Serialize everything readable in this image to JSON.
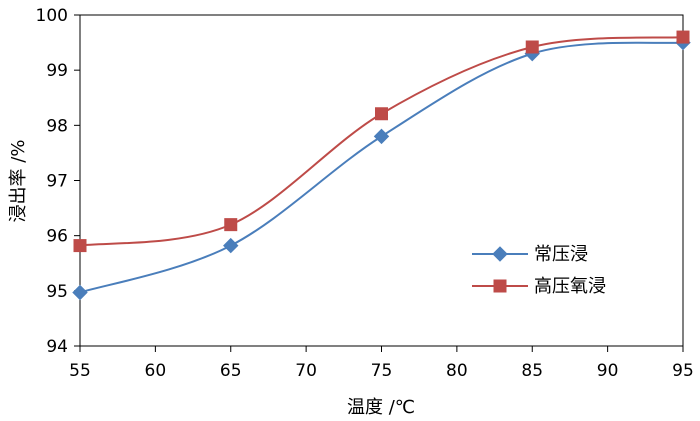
{
  "chart_data": {
    "type": "line",
    "x": [
      55,
      65,
      75,
      85,
      95
    ],
    "xlim": [
      55,
      95
    ],
    "ylim": [
      94,
      100
    ],
    "x_ticks": [
      "55",
      "60",
      "65",
      "70",
      "75",
      "80",
      "85",
      "90",
      "95"
    ],
    "y_ticks": [
      "94",
      "95",
      "96",
      "97",
      "98",
      "99",
      "100"
    ],
    "xlabel": "温度 /℃",
    "ylabel": "浸出率 /%",
    "smooth": true,
    "grid": false,
    "legend_position": "right",
    "series": [
      {
        "name": "常压浸",
        "values": [
          94.97,
          95.82,
          97.8,
          99.3,
          99.5
        ],
        "color": "#4a7ebb",
        "marker": "diamond"
      },
      {
        "name": "高压氧浸",
        "values": [
          95.82,
          96.2,
          98.21,
          99.42,
          99.6
        ],
        "color": "#be4b48",
        "marker": "square"
      }
    ]
  }
}
